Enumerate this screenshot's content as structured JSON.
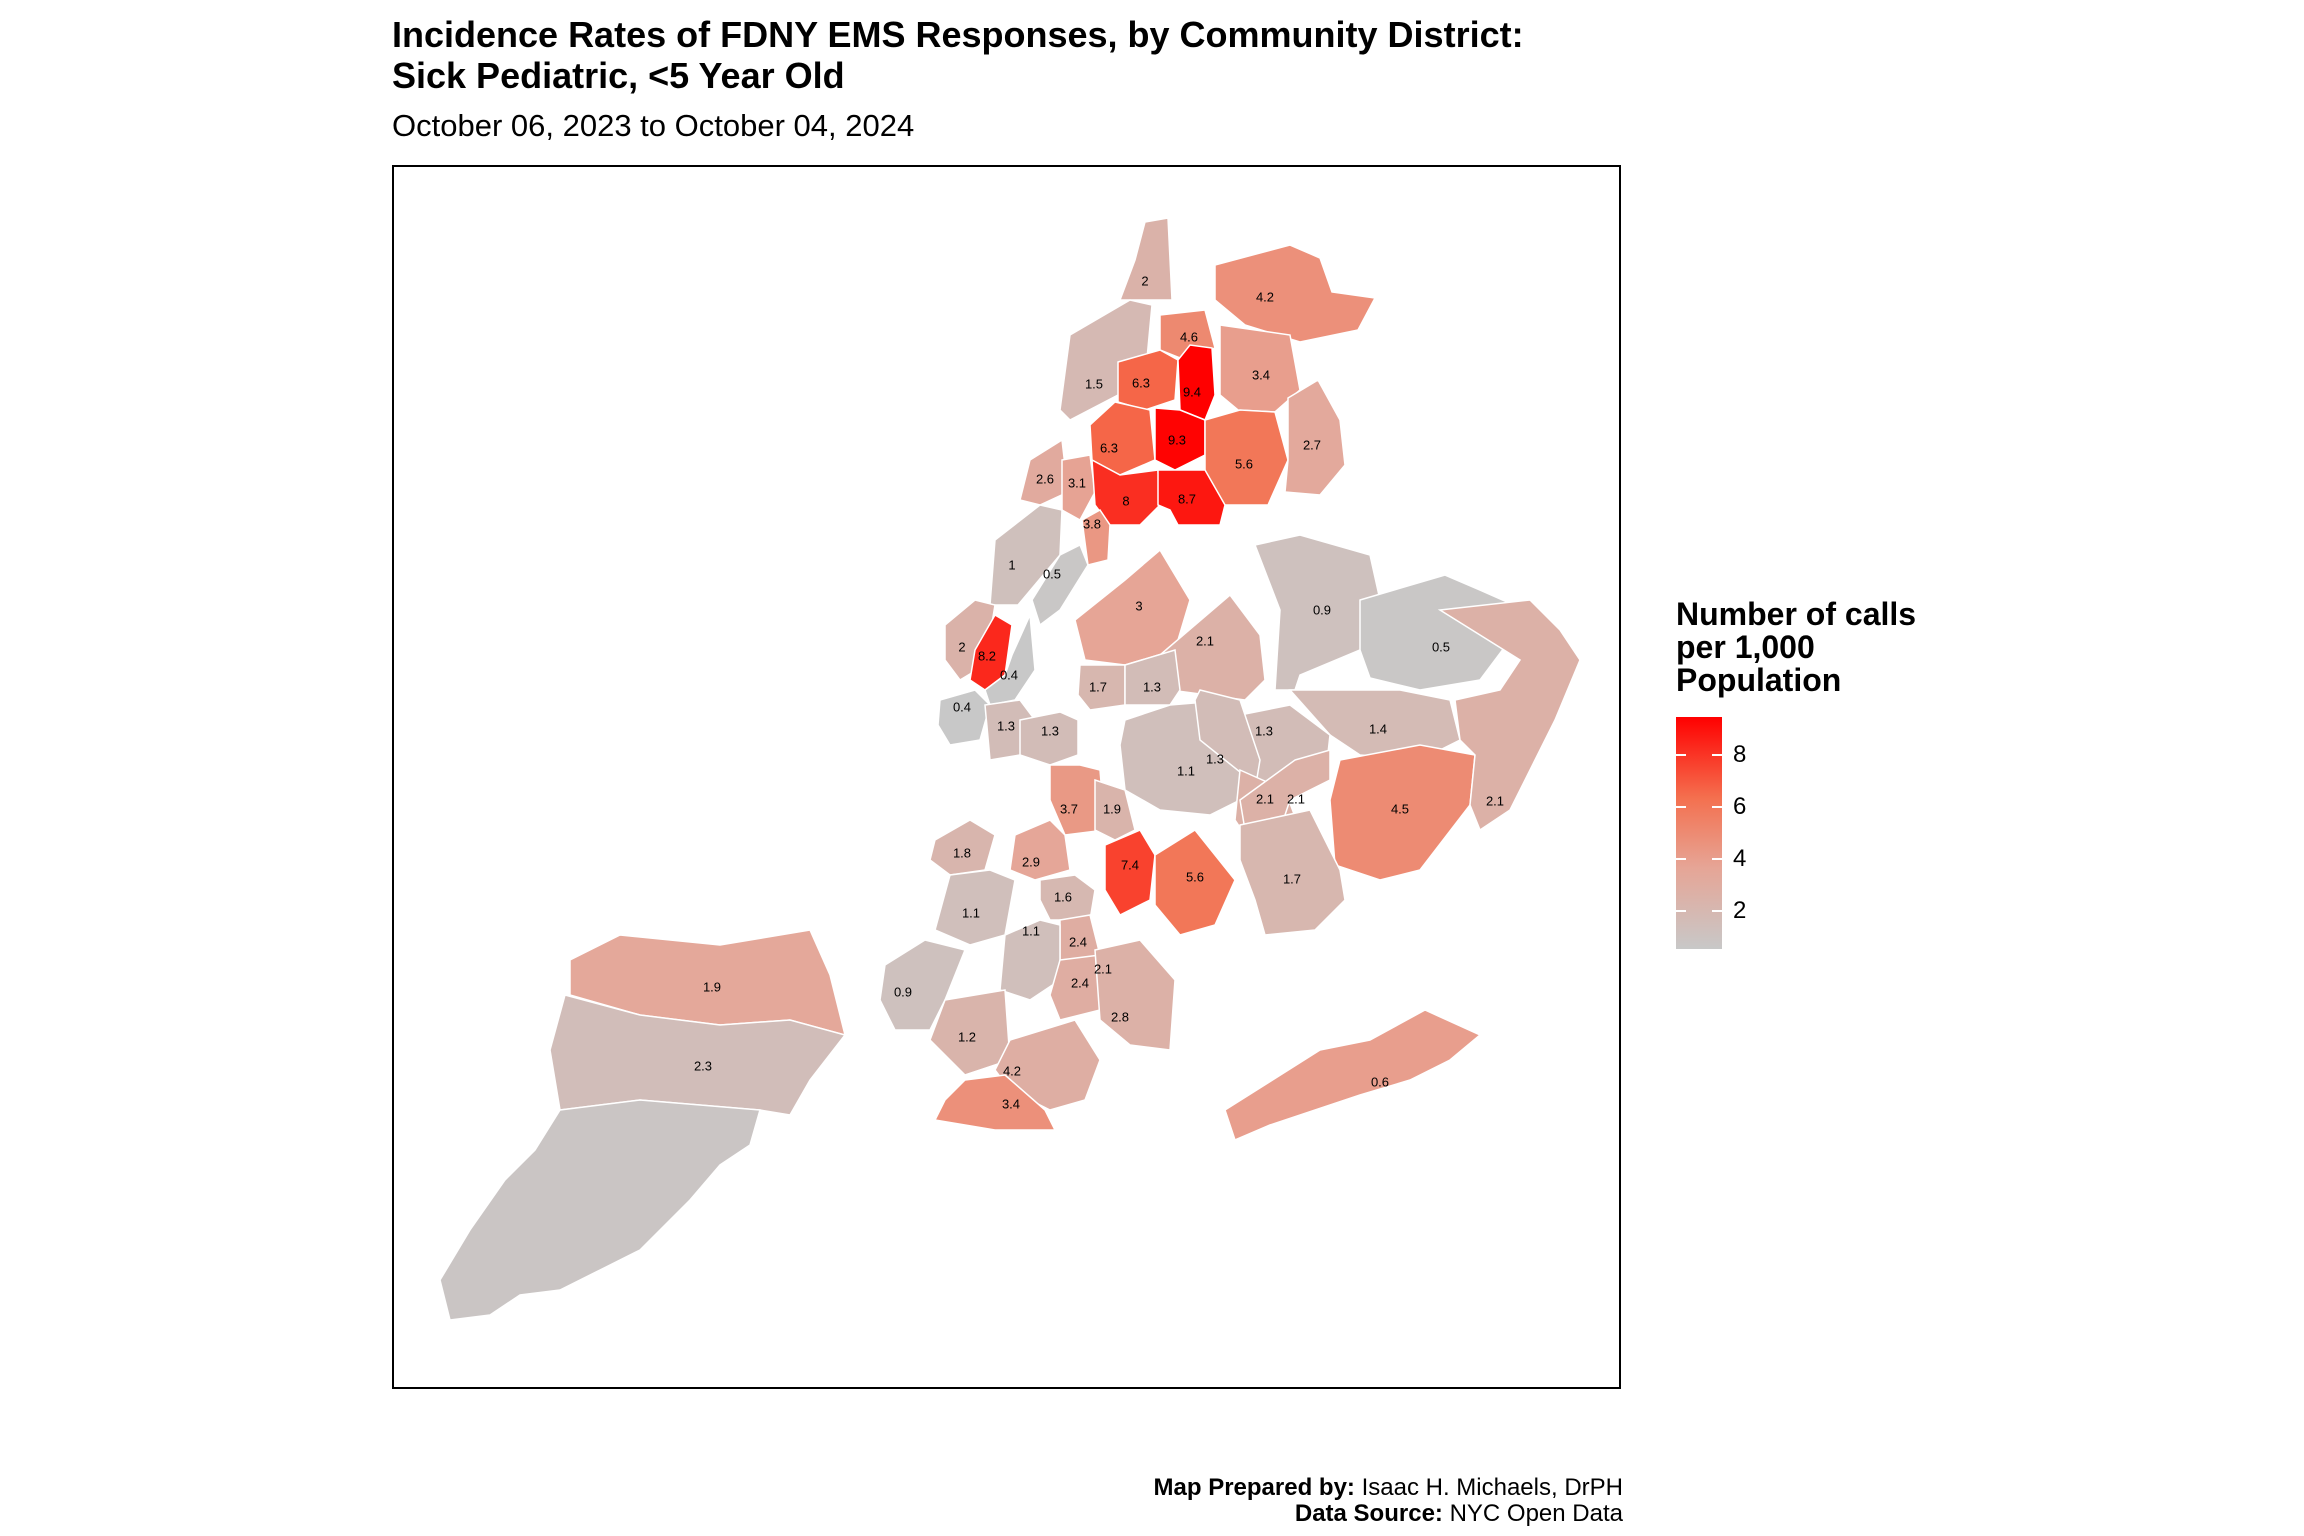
{
  "title": {
    "line1": "Incidence Rates of FDNY EMS Responses, by Community District:",
    "line2": "Sick Pediatric, <5 Year Old"
  },
  "subtitle": "October 06, 2023 to October 04, 2024",
  "legend": {
    "title_line1": "Number of calls",
    "title_line2": "per 1,000",
    "title_line3": "Population",
    "ticks": [
      "8",
      "6",
      "4",
      "2"
    ],
    "color_low": "#c8c8c8",
    "color_high": "#ff0000"
  },
  "credits": {
    "prepared_label": "Map Prepared by:",
    "prepared_value": " Isaac H. Michaels, DrPH",
    "source_label": "Data Source:",
    "source_value": " NYC Open Data"
  },
  "districts": [
    {
      "label": "2",
      "value": 2
    },
    {
      "label": "4.2",
      "value": 4.2
    },
    {
      "label": "4.6",
      "value": 4.6
    },
    {
      "label": "1.5",
      "value": 1.5
    },
    {
      "label": "6.3",
      "value": 6.3
    },
    {
      "label": "9.4",
      "value": 9.4
    },
    {
      "label": "3.4",
      "value": 3.4
    },
    {
      "label": "6.3",
      "value": 6.3
    },
    {
      "label": "9.3",
      "value": 9.3
    },
    {
      "label": "5.6",
      "value": 5.6
    },
    {
      "label": "2.7",
      "value": 2.7
    },
    {
      "label": "2.6",
      "value": 2.6
    },
    {
      "label": "3.1",
      "value": 3.1
    },
    {
      "label": "8",
      "value": 8
    },
    {
      "label": "8.7",
      "value": 8.7
    },
    {
      "label": "3.8",
      "value": 3.8
    },
    {
      "label": "1",
      "value": 1
    },
    {
      "label": "0.5",
      "value": 0.5
    },
    {
      "label": "3",
      "value": 3
    },
    {
      "label": "0.9",
      "value": 0.9
    },
    {
      "label": "2",
      "value": 2
    },
    {
      "label": "8.2",
      "value": 8.2
    },
    {
      "label": "0.4",
      "value": 0.4
    },
    {
      "label": "2.1",
      "value": 2.1
    },
    {
      "label": "0.5",
      "value": 0.5
    },
    {
      "label": "1.7",
      "value": 1.7
    },
    {
      "label": "1.3",
      "value": 1.3
    },
    {
      "label": "0.4",
      "value": 0.4
    },
    {
      "label": "1.3",
      "value": 1.3
    },
    {
      "label": "1.3",
      "value": 1.3
    },
    {
      "label": "1.4",
      "value": 1.4
    },
    {
      "label": "1.3",
      "value": 1.3
    },
    {
      "label": "1.1",
      "value": 1.1
    },
    {
      "label": "1.3",
      "value": 1.3
    },
    {
      "label": "2.1",
      "value": 2.1
    },
    {
      "label": "3.7",
      "value": 3.7
    },
    {
      "label": "1.9",
      "value": 1.9
    },
    {
      "label": "2.1",
      "value": 2.1
    },
    {
      "label": "4.5",
      "value": 4.5
    },
    {
      "label": "2.1",
      "value": 2.1
    },
    {
      "label": "1.8",
      "value": 1.8
    },
    {
      "label": "2.9",
      "value": 2.9
    },
    {
      "label": "7.4",
      "value": 7.4
    },
    {
      "label": "5.6",
      "value": 5.6
    },
    {
      "label": "1.7",
      "value": 1.7
    },
    {
      "label": "1.6",
      "value": 1.6
    },
    {
      "label": "1.1",
      "value": 1.1
    },
    {
      "label": "2.4",
      "value": 2.4
    },
    {
      "label": "1.1",
      "value": 1.1
    },
    {
      "label": "2.4",
      "value": 2.4
    },
    {
      "label": "0.9",
      "value": 0.9
    },
    {
      "label": "2.1",
      "value": 2.1
    },
    {
      "label": "2.8",
      "value": 2.8
    },
    {
      "label": "1.9",
      "value": 1.9
    },
    {
      "label": "1.2",
      "value": 1.2
    },
    {
      "label": "2.3",
      "value": 2.3
    },
    {
      "label": "4.2",
      "value": 4.2
    },
    {
      "label": "3.4",
      "value": 3.4
    },
    {
      "label": "0.6",
      "value": 0.6
    }
  ]
}
